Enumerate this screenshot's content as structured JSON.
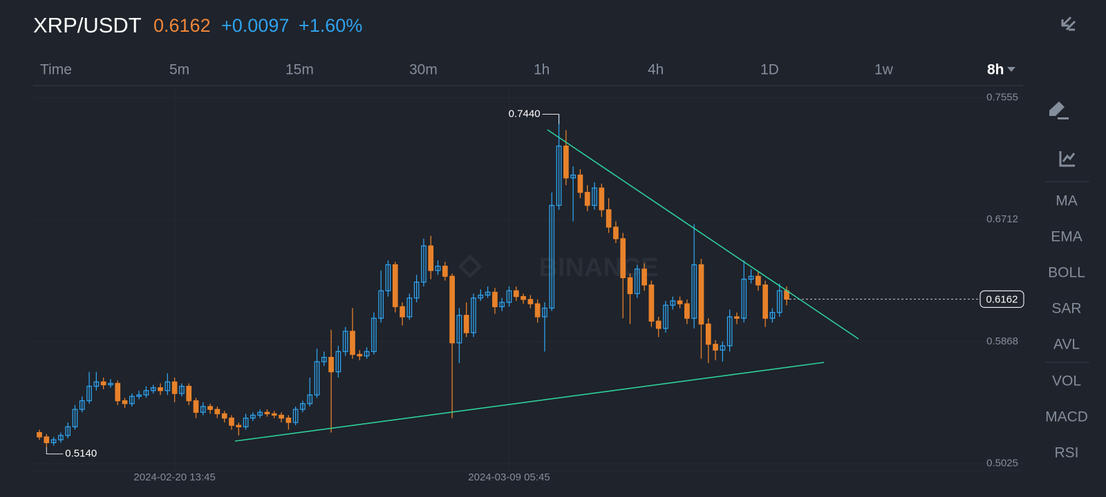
{
  "header": {
    "pair": "XRP/USDT",
    "price": "0.6162",
    "change": "+0.0097",
    "change_pct": "+1.60%"
  },
  "timeframes": [
    "Time",
    "5m",
    "15m",
    "30m",
    "1h",
    "4h",
    "1D",
    "1w"
  ],
  "selected_timeframe": "8h",
  "indicators": [
    "MA",
    "EMA",
    "BOLL",
    "SAR",
    "AVL"
  ],
  "sub_indicators": [
    "VOL",
    "MACD",
    "RSI"
  ],
  "watermark": "BINANCE",
  "chart_data": {
    "type": "candlestick",
    "up_color": "#2ea3ee",
    "down_color": "#e8822b",
    "ylim": [
      0.4976,
      0.7638
    ],
    "yticks": [
      0.7555,
      0.6712,
      0.5868,
      0.5025
    ],
    "grid": true,
    "categories": [
      null,
      null,
      null,
      null,
      null,
      null,
      null,
      null,
      null,
      null,
      null,
      null,
      null,
      null,
      null,
      null,
      null,
      null,
      null,
      "2024-02-20 13:45",
      null,
      null,
      null,
      null,
      null,
      null,
      null,
      null,
      null,
      null,
      null,
      null,
      null,
      null,
      null,
      null,
      null,
      null,
      null,
      null,
      null,
      null,
      null,
      null,
      null,
      null,
      null,
      null,
      null,
      null,
      null,
      null,
      null,
      null,
      null,
      null,
      null,
      null,
      null,
      null,
      null,
      null,
      null,
      null,
      null,
      null,
      "2024-03-09 05:45",
      null,
      null,
      null,
      null,
      null,
      null,
      null,
      null,
      null,
      null,
      null,
      null,
      null,
      null,
      null,
      null,
      null,
      null,
      null,
      null,
      null,
      null,
      null,
      null,
      null,
      null,
      null,
      null,
      null,
      null,
      null,
      null,
      null,
      null,
      null,
      null,
      null,
      null,
      null
    ],
    "open": [
      0.524,
      0.521,
      0.517,
      0.519,
      0.522,
      0.528,
      0.54,
      0.546,
      0.556,
      0.559,
      0.557,
      0.558,
      0.546,
      0.544,
      0.549,
      0.55,
      0.553,
      0.555,
      0.553,
      0.559,
      0.551,
      0.556,
      0.546,
      0.538,
      0.542,
      0.54,
      0.537,
      0.534,
      0.529,
      0.528,
      0.534,
      0.536,
      0.538,
      0.537,
      0.536,
      0.534,
      0.531,
      0.54,
      0.544,
      0.55,
      0.573,
      0.576,
      0.566,
      0.58,
      0.594,
      0.578,
      0.577,
      0.58,
      0.603,
      0.622,
      0.64,
      0.611,
      0.604,
      0.617,
      0.628,
      0.653,
      0.636,
      0.639,
      0.632,
      0.586,
      0.605,
      0.593,
      0.617,
      0.619,
      0.621,
      0.611,
      0.614,
      0.622,
      0.618,
      0.616,
      0.613,
      0.604,
      0.61,
      0.681,
      0.722,
      0.7,
      0.702,
      0.69,
      0.681,
      0.693,
      0.678,
      0.666,
      0.658,
      0.631,
      0.62,
      0.637,
      0.626,
      0.601,
      0.596,
      0.612,
      0.615,
      0.613,
      0.603,
      0.64,
      0.599,
      0.585,
      0.581,
      0.584,
      0.604,
      0.603,
      0.63,
      0.632,
      0.626,
      0.603,
      0.607,
      0.622
    ],
    "high": [
      0.526,
      0.523,
      0.521,
      0.524,
      0.531,
      0.543,
      0.549,
      0.566,
      0.566,
      0.562,
      0.561,
      0.56,
      0.548,
      0.551,
      0.553,
      0.556,
      0.557,
      0.558,
      0.565,
      0.562,
      0.558,
      0.558,
      0.548,
      0.545,
      0.544,
      0.542,
      0.539,
      0.536,
      0.531,
      0.537,
      0.538,
      0.54,
      0.54,
      0.539,
      0.538,
      0.536,
      0.542,
      0.546,
      0.562,
      0.582,
      0.58,
      0.595,
      0.584,
      0.597,
      0.61,
      0.581,
      0.583,
      0.607,
      0.636,
      0.643,
      0.642,
      0.614,
      0.62,
      0.633,
      0.658,
      0.66,
      0.643,
      0.642,
      0.634,
      0.61,
      0.614,
      0.62,
      0.623,
      0.625,
      0.624,
      0.617,
      0.625,
      0.625,
      0.62,
      0.619,
      0.616,
      0.614,
      0.69,
      0.744,
      0.733,
      0.708,
      0.706,
      0.695,
      0.697,
      0.696,
      0.686,
      0.67,
      0.662,
      0.634,
      0.64,
      0.641,
      0.629,
      0.604,
      0.615,
      0.618,
      0.618,
      0.616,
      0.668,
      0.644,
      0.603,
      0.588,
      0.587,
      0.609,
      0.607,
      0.643,
      0.637,
      0.635,
      0.629,
      0.61,
      0.627,
      0.625
    ],
    "low": [
      0.519,
      0.514,
      0.515,
      0.517,
      0.52,
      0.526,
      0.538,
      0.544,
      0.553,
      0.554,
      0.555,
      0.543,
      0.541,
      0.542,
      0.547,
      0.548,
      0.551,
      0.55,
      0.55,
      0.545,
      0.549,
      0.543,
      0.534,
      0.536,
      0.537,
      0.534,
      0.531,
      0.526,
      0.522,
      0.526,
      0.532,
      0.534,
      0.535,
      0.534,
      0.531,
      0.526,
      0.529,
      0.538,
      0.542,
      0.548,
      0.57,
      0.524,
      0.562,
      0.577,
      0.575,
      0.574,
      0.575,
      0.578,
      0.6,
      0.618,
      0.607,
      0.598,
      0.602,
      0.614,
      0.625,
      0.63,
      0.633,
      0.629,
      0.534,
      0.572,
      0.59,
      0.59,
      0.615,
      0.617,
      0.606,
      0.608,
      0.611,
      0.615,
      0.613,
      0.61,
      0.6,
      0.58,
      0.608,
      0.678,
      0.695,
      0.67,
      0.686,
      0.677,
      0.678,
      0.673,
      0.662,
      0.655,
      0.603,
      0.599,
      0.617,
      0.622,
      0.597,
      0.59,
      0.593,
      0.609,
      0.61,
      0.599,
      0.596,
      0.575,
      0.572,
      0.574,
      0.573,
      0.58,
      0.599,
      0.6,
      0.627,
      0.622,
      0.597,
      0.6,
      0.604,
      0.612
    ],
    "close": [
      0.521,
      0.517,
      0.519,
      0.522,
      0.528,
      0.54,
      0.546,
      0.556,
      0.559,
      0.557,
      0.558,
      0.546,
      0.544,
      0.549,
      0.55,
      0.553,
      0.555,
      0.553,
      0.559,
      0.551,
      0.556,
      0.546,
      0.538,
      0.542,
      0.54,
      0.537,
      0.534,
      0.529,
      0.528,
      0.534,
      0.536,
      0.538,
      0.537,
      0.536,
      0.534,
      0.531,
      0.54,
      0.544,
      0.55,
      0.573,
      0.576,
      0.566,
      0.58,
      0.594,
      0.578,
      0.577,
      0.58,
      0.603,
      0.622,
      0.64,
      0.611,
      0.604,
      0.617,
      0.628,
      0.653,
      0.636,
      0.639,
      0.632,
      0.586,
      0.605,
      0.593,
      0.617,
      0.619,
      0.621,
      0.611,
      0.614,
      0.622,
      0.618,
      0.616,
      0.613,
      0.604,
      0.61,
      0.681,
      0.722,
      0.7,
      0.702,
      0.69,
      0.681,
      0.693,
      0.678,
      0.666,
      0.658,
      0.631,
      0.62,
      0.637,
      0.626,
      0.601,
      0.596,
      0.612,
      0.615,
      0.613,
      0.603,
      0.64,
      0.599,
      0.585,
      0.581,
      0.584,
      0.604,
      0.603,
      0.63,
      0.632,
      0.626,
      0.603,
      0.607,
      0.622,
      0.6162
    ],
    "annotations": {
      "max": {
        "value": 0.744,
        "label": "0.7440"
      },
      "min": {
        "value": 0.514,
        "label": "0.5140"
      },
      "last": 0.6162
    }
  }
}
